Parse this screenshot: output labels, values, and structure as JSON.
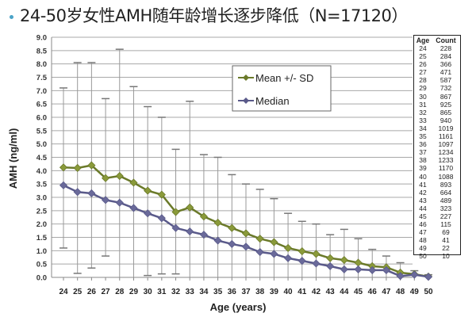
{
  "title": "24-50岁女性AMH随年龄增长逐步降低（N=17120）",
  "chart_data": {
    "type": "line",
    "title": "24-50岁女性AMH随年龄增长逐步降低（N=17120）",
    "xlabel": "Age (years)",
    "ylabel": "AMH (ng/ml)",
    "ylim": [
      0,
      9
    ],
    "yticks": [
      "0.0",
      "0.5",
      "1.0",
      "1.5",
      "2.0",
      "2.5",
      "3.0",
      "3.5",
      "4.0",
      "4.5",
      "5.0",
      "5.5",
      "6.0",
      "6.5",
      "7.0",
      "7.5",
      "8.0",
      "8.5",
      "9.0"
    ],
    "grid": true,
    "legend_position": "upper-center",
    "x": [
      24,
      25,
      26,
      27,
      28,
      29,
      30,
      31,
      32,
      33,
      34,
      35,
      36,
      37,
      38,
      39,
      40,
      41,
      42,
      43,
      44,
      45,
      46,
      47,
      48,
      49,
      50
    ],
    "series": [
      {
        "name": "Mean +/- SD",
        "color": "#6b7a2a",
        "values": [
          4.12,
          4.1,
          4.2,
          3.72,
          3.8,
          3.55,
          3.25,
          3.1,
          2.45,
          2.62,
          2.28,
          2.05,
          1.85,
          1.65,
          1.45,
          1.32,
          1.1,
          0.98,
          0.88,
          0.72,
          0.65,
          0.55,
          0.42,
          0.38,
          0.18,
          0.12,
          0.03
        ],
        "upper": [
          7.1,
          8.05,
          8.05,
          6.7,
          8.55,
          7.15,
          6.4,
          6.0,
          4.8,
          6.6,
          4.6,
          4.5,
          3.85,
          3.5,
          3.3,
          2.95,
          2.4,
          2.1,
          2.0,
          1.6,
          1.8,
          1.45,
          1.05,
          0.8,
          0.55,
          0.25,
          0.1
        ],
        "lower": [
          1.1,
          0.15,
          0.35,
          0.8,
          0.0,
          0.0,
          0.07,
          0.13,
          0.13,
          0.0,
          0.0,
          0.0,
          0.0,
          0.0,
          0.0,
          0.0,
          0.0,
          0.0,
          0.0,
          0.0,
          0.0,
          0.0,
          0.0,
          0.0,
          0.0,
          0.0,
          0.0
        ]
      },
      {
        "name": "Median",
        "color": "#5a5a8a",
        "values": [
          3.45,
          3.2,
          3.15,
          2.9,
          2.8,
          2.6,
          2.4,
          2.22,
          1.85,
          1.72,
          1.6,
          1.38,
          1.25,
          1.15,
          0.95,
          0.88,
          0.72,
          0.62,
          0.52,
          0.42,
          0.3,
          0.3,
          0.27,
          0.27,
          0.05,
          0.1,
          0.02
        ]
      }
    ],
    "count_table": {
      "headers": [
        "Age",
        "Count"
      ],
      "rows": [
        [
          "24",
          "228"
        ],
        [
          "25",
          "284"
        ],
        [
          "26",
          "366"
        ],
        [
          "27",
          "471"
        ],
        [
          "28",
          "587"
        ],
        [
          "29",
          "732"
        ],
        [
          "30",
          "867"
        ],
        [
          "31",
          "925"
        ],
        [
          "32",
          "865"
        ],
        [
          "33",
          "940"
        ],
        [
          "34",
          "1019"
        ],
        [
          "35",
          "1161"
        ],
        [
          "36",
          "1097"
        ],
        [
          "37",
          "1234"
        ],
        [
          "38",
          "1233"
        ],
        [
          "39",
          "1170"
        ],
        [
          "40",
          "1088"
        ],
        [
          "41",
          "893"
        ],
        [
          "42",
          "664"
        ],
        [
          "43",
          "489"
        ],
        [
          "44",
          "323"
        ],
        [
          "45",
          "227"
        ],
        [
          "46",
          "115"
        ],
        [
          "47",
          "69"
        ],
        [
          "48",
          "41"
        ],
        [
          "49",
          "22"
        ],
        [
          "50",
          "10"
        ]
      ]
    }
  }
}
